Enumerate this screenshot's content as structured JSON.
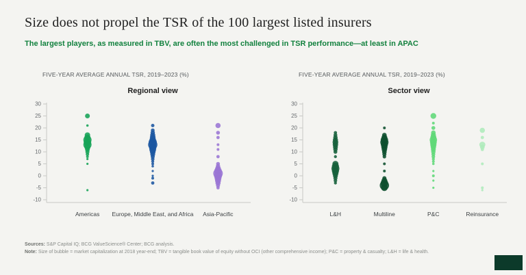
{
  "header": {
    "title": "Size does not propel the TSR of the 100 largest listed insurers",
    "subtitle": "The largest players, as measured in TBV, are often the most challenged in TSR performance—at least in APAC"
  },
  "colors": {
    "subtitle_green": "#12813e",
    "logo_block": "#0c3a2a",
    "axis_line": "#c7c9c5",
    "tick_text": "#666a6d"
  },
  "footer": {
    "sources_label": "Sources:",
    "sources_text": " S&P Capital IQ; BCG ValueScience® Center; BCG analysis.",
    "note_label": "Note:",
    "note_text": " Size of bubble = market capitalization at 2018 year-end; TBV = tangible book value of equity without OCI (other comprehensive income); P&C = property & casualty; L&H = life & health."
  },
  "chart_data": [
    {
      "type": "scatter",
      "variant": "bubble-strip",
      "axis_label": "FIVE-YEAR AVERAGE ANNUAL TSR, 2019–2023 (%)",
      "title": "Regional view",
      "ylim": [
        -10,
        30
      ],
      "yticks": [
        30,
        25,
        20,
        15,
        10,
        5,
        0,
        -5,
        -10
      ],
      "grid": false,
      "legend": "none",
      "categories": [
        "Americas",
        "Europe, Middle East, and Africa",
        "Asia-Pacific"
      ],
      "series": [
        {
          "name": "Americas",
          "color": "#16a356",
          "points": [
            [
              25,
              3.5
            ],
            [
              21,
              1.8
            ],
            [
              17,
              4
            ],
            [
              16,
              4.5
            ],
            [
              15,
              6
            ],
            [
              14,
              5.5
            ],
            [
              13,
              6
            ],
            [
              12,
              4.5
            ],
            [
              11,
              3.5
            ],
            [
              10,
              3
            ],
            [
              9,
              2.5
            ],
            [
              8,
              2
            ],
            [
              7,
              1.6
            ],
            [
              5,
              1.6
            ],
            [
              -6,
              1.6
            ]
          ]
        },
        {
          "name": "Europe, Middle East, and Africa",
          "color": "#1a55a0",
          "points": [
            [
              21,
              2.5
            ],
            [
              19,
              2.8
            ],
            [
              18,
              3.2
            ],
            [
              17,
              3.8
            ],
            [
              16,
              4.2
            ],
            [
              15,
              4.8
            ],
            [
              14,
              6
            ],
            [
              13,
              6.8
            ],
            [
              12,
              5.5
            ],
            [
              11,
              5
            ],
            [
              10,
              4.2
            ],
            [
              9,
              3.6
            ],
            [
              8,
              3
            ],
            [
              7,
              2.6
            ],
            [
              6,
              2.2
            ],
            [
              5,
              2
            ],
            [
              4,
              1.8
            ],
            [
              2,
              1.6
            ],
            [
              0,
              1.6
            ],
            [
              -1,
              2
            ],
            [
              -3,
              2.4
            ]
          ]
        },
        {
          "name": "Asia-Pacific",
          "color": "#9a75d4",
          "points": [
            [
              21,
              3.8
            ],
            [
              18,
              2.8
            ],
            [
              16,
              2.4
            ],
            [
              13,
              2
            ],
            [
              11,
              2
            ],
            [
              8,
              2.4
            ],
            [
              5,
              2.8
            ],
            [
              4,
              3.2
            ],
            [
              3,
              4.2
            ],
            [
              2,
              5.5
            ],
            [
              1,
              7
            ],
            [
              0,
              5.8
            ],
            [
              -1,
              5
            ],
            [
              -2,
              4.4
            ],
            [
              -3,
              3.8
            ],
            [
              -4,
              3
            ],
            [
              -5,
              2.4
            ]
          ]
        }
      ]
    },
    {
      "type": "scatter",
      "variant": "bubble-strip",
      "axis_label": "FIVE-YEAR AVERAGE ANNUAL TSR, 2019–2023 (%)",
      "title": "Sector view",
      "ylim": [
        -10,
        30
      ],
      "yticks": [
        30,
        25,
        20,
        15,
        10,
        5,
        0,
        -5,
        -10
      ],
      "grid": false,
      "legend": "none",
      "categories": [
        "L&H",
        "Multiline",
        "P&C",
        "Reinsurance"
      ],
      "series": [
        {
          "name": "L&H",
          "color": "#14603a",
          "points": [
            [
              18,
              2.4
            ],
            [
              17,
              2.8
            ],
            [
              16,
              3.2
            ],
            [
              15,
              3.8
            ],
            [
              14,
              4.2
            ],
            [
              13,
              4
            ],
            [
              12,
              3.6
            ],
            [
              11,
              3.2
            ],
            [
              10,
              2.8
            ],
            [
              8,
              2.2
            ],
            [
              5,
              4.4
            ],
            [
              4,
              5.2
            ],
            [
              3,
              5.8
            ],
            [
              2,
              5.2
            ],
            [
              1,
              4.4
            ],
            [
              0,
              3.6
            ],
            [
              -1,
              3
            ],
            [
              -2,
              2.6
            ],
            [
              -3,
              2.2
            ]
          ]
        },
        {
          "name": "Multiline",
          "color": "#0d4f2e",
          "points": [
            [
              20,
              2
            ],
            [
              17,
              3.4
            ],
            [
              16,
              4.2
            ],
            [
              15,
              5.4
            ],
            [
              14,
              6
            ],
            [
              13,
              5.2
            ],
            [
              12,
              4.6
            ],
            [
              11,
              4
            ],
            [
              10,
              3.4
            ],
            [
              9,
              3
            ],
            [
              8,
              2.6
            ],
            [
              5,
              2
            ],
            [
              2,
              2
            ],
            [
              -1,
              3
            ],
            [
              -2,
              4.2
            ],
            [
              -3,
              5.4
            ],
            [
              -4,
              6.8
            ],
            [
              -5,
              4.8
            ]
          ]
        },
        {
          "name": "P&C",
          "color": "#5fd878",
          "points": [
            [
              25,
              4.2
            ],
            [
              22,
              2
            ],
            [
              20,
              2.8
            ],
            [
              18,
              3.4
            ],
            [
              17,
              3.8
            ],
            [
              16,
              4.4
            ],
            [
              15,
              5.4
            ],
            [
              14,
              5
            ],
            [
              13,
              4.6
            ],
            [
              12,
              4
            ],
            [
              11,
              3.6
            ],
            [
              10,
              3.2
            ],
            [
              9,
              2.8
            ],
            [
              8,
              2.6
            ],
            [
              7,
              2.2
            ],
            [
              6,
              2
            ],
            [
              5,
              1.8
            ],
            [
              2,
              1.6
            ],
            [
              0,
              2
            ],
            [
              -2,
              1.6
            ],
            [
              -5,
              1.6
            ]
          ]
        },
        {
          "name": "Reinsurance",
          "color": "#aeeabb",
          "points": [
            [
              19,
              3.8
            ],
            [
              16,
              2.4
            ],
            [
              13,
              4.4
            ],
            [
              12,
              3.4
            ],
            [
              11,
              2.4
            ],
            [
              5,
              2
            ],
            [
              -5,
              2
            ],
            [
              -6,
              1.6
            ]
          ]
        }
      ]
    }
  ]
}
